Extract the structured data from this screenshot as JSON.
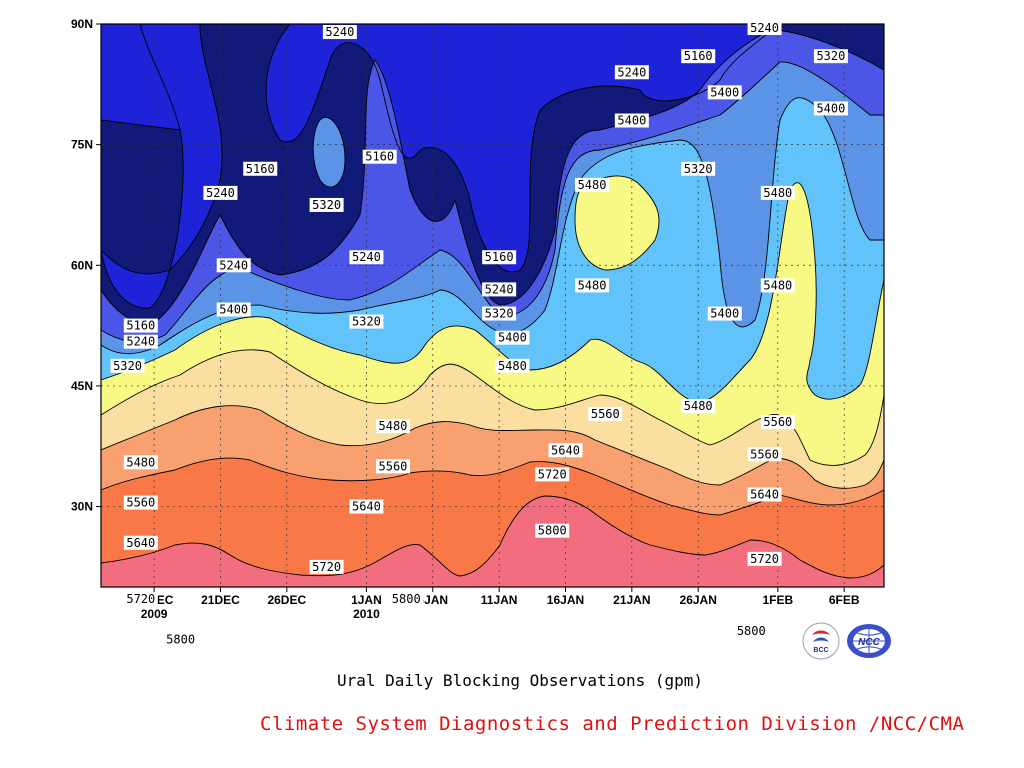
{
  "chart_data": {
    "type": "heatmap",
    "subtype": "filled-contour",
    "title": "Ural Daily Blocking Observations (gpm)",
    "variable": "500hPa geopotential height",
    "y_ticks": [
      "90N",
      "75N",
      "60N",
      "45N",
      "30N"
    ],
    "x_ticks": [
      {
        "label": "16DEC",
        "sub": "2009"
      },
      {
        "label": "21DEC",
        "sub": ""
      },
      {
        "label": "26DEC",
        "sub": ""
      },
      {
        "label": "1JAN",
        "sub": "2010"
      },
      {
        "label": "6JAN",
        "sub": ""
      },
      {
        "label": "11JAN",
        "sub": ""
      },
      {
        "label": "16JAN",
        "sub": ""
      },
      {
        "label": "21JAN",
        "sub": ""
      },
      {
        "label": "26JAN",
        "sub": ""
      },
      {
        "label": "1FEB",
        "sub": ""
      },
      {
        "label": "6FEB",
        "sub": ""
      }
    ],
    "x_range": [
      "2009-12-12",
      "2010-02-09"
    ],
    "y_range": [
      20,
      90
    ],
    "grid": true,
    "contour_levels": [
      5160,
      5240,
      5320,
      5400,
      5480,
      5560,
      5640,
      5720,
      5800
    ],
    "band_colors": [
      "#111a78",
      "#1e23d8",
      "#4b55e6",
      "#5b94e6",
      "#62c3fa",
      "#f8f884",
      "#fadfa0",
      "#f8a070",
      "#f87848",
      "#f26e7e"
    ],
    "contour_labels": [
      {
        "date": "2009-12-15",
        "lat": 52.5,
        "value": 5160
      },
      {
        "date": "2009-12-15",
        "lat": 50.5,
        "value": 5240
      },
      {
        "date": "2009-12-14",
        "lat": 47.5,
        "value": 5320
      },
      {
        "date": "2009-12-15",
        "lat": 35.5,
        "value": 5480
      },
      {
        "date": "2009-12-15",
        "lat": 30.5,
        "value": 5560
      },
      {
        "date": "2009-12-15",
        "lat": 25.5,
        "value": 5640
      },
      {
        "date": "2009-12-15",
        "lat": 18.5,
        "value": 5720
      },
      {
        "date": "2009-12-18",
        "lat": 13.5,
        "value": 5800
      },
      {
        "date": "2009-12-21",
        "lat": 69.0,
        "value": 5240
      },
      {
        "date": "2009-12-24",
        "lat": 72.0,
        "value": 5160
      },
      {
        "date": "2009-12-22",
        "lat": 60.0,
        "value": 5240
      },
      {
        "date": "2009-12-22",
        "lat": 54.5,
        "value": 5400
      },
      {
        "date": "2009-12-30",
        "lat": 89.0,
        "value": 5240
      },
      {
        "date": "2009-12-29",
        "lat": 67.5,
        "value": 5320
      },
      {
        "date": "2010-01-02",
        "lat": 73.5,
        "value": 5160
      },
      {
        "date": "2010-01-01",
        "lat": 61.0,
        "value": 5240
      },
      {
        "date": "2010-01-01",
        "lat": 53.0,
        "value": 5320
      },
      {
        "date": "2010-01-03",
        "lat": 40.0,
        "value": 5480
      },
      {
        "date": "2010-01-03",
        "lat": 35.0,
        "value": 5560
      },
      {
        "date": "2010-01-01",
        "lat": 30.0,
        "value": 5640
      },
      {
        "date": "2009-12-29",
        "lat": 22.5,
        "value": 5720
      },
      {
        "date": "2010-01-04",
        "lat": 18.5,
        "value": 5800
      },
      {
        "date": "2010-01-11",
        "lat": 61.0,
        "value": 5160
      },
      {
        "date": "2010-01-11",
        "lat": 57.0,
        "value": 5240
      },
      {
        "date": "2010-01-11",
        "lat": 54.0,
        "value": 5320
      },
      {
        "date": "2010-01-12",
        "lat": 51.0,
        "value": 5400
      },
      {
        "date": "2010-01-12",
        "lat": 47.5,
        "value": 5480
      },
      {
        "date": "2010-01-16",
        "lat": 37.0,
        "value": 5640
      },
      {
        "date": "2010-01-15",
        "lat": 34.0,
        "value": 5720
      },
      {
        "date": "2010-01-15",
        "lat": 27.0,
        "value": 5800
      },
      {
        "date": "2010-01-19",
        "lat": 41.5,
        "value": 5560
      },
      {
        "date": "2010-01-18",
        "lat": 70.0,
        "value": 5480
      },
      {
        "date": "2010-01-18",
        "lat": 57.5,
        "value": 5480
      },
      {
        "date": "2010-01-21",
        "lat": 84.0,
        "value": 5240
      },
      {
        "date": "2010-01-21",
        "lat": 78.0,
        "value": 5400
      },
      {
        "date": "2010-01-26",
        "lat": 86.0,
        "value": 5160
      },
      {
        "date": "2010-01-26",
        "lat": 72.0,
        "value": 5320
      },
      {
        "date": "2010-01-28",
        "lat": 81.5,
        "value": 5400
      },
      {
        "date": "2010-01-28",
        "lat": 54.0,
        "value": 5400
      },
      {
        "date": "2010-01-26",
        "lat": 42.5,
        "value": 5480
      },
      {
        "date": "2010-01-31",
        "lat": 36.5,
        "value": 5560
      },
      {
        "date": "2010-01-31",
        "lat": 31.5,
        "value": 5640
      },
      {
        "date": "2010-01-31",
        "lat": 23.5,
        "value": 5720
      },
      {
        "date": "2010-01-30",
        "lat": 14.5,
        "value": 5800
      },
      {
        "date": "2010-02-01",
        "lat": 69.0,
        "value": 5480
      },
      {
        "date": "2010-02-01",
        "lat": 57.5,
        "value": 5480
      },
      {
        "date": "2010-02-01",
        "lat": 40.5,
        "value": 5560
      },
      {
        "date": "2010-01-31",
        "lat": 89.5,
        "value": 5240
      },
      {
        "date": "2010-02-05",
        "lat": 86.0,
        "value": 5320
      },
      {
        "date": "2010-02-05",
        "lat": 79.5,
        "value": 5400
      }
    ]
  },
  "footer": {
    "title": "Ural Daily Blocking Observations (gpm)",
    "credit": "Climate System Diagnostics and Prediction Division /NCC/CMA",
    "logos": [
      "bcc-logo",
      "ncc-logo"
    ]
  }
}
